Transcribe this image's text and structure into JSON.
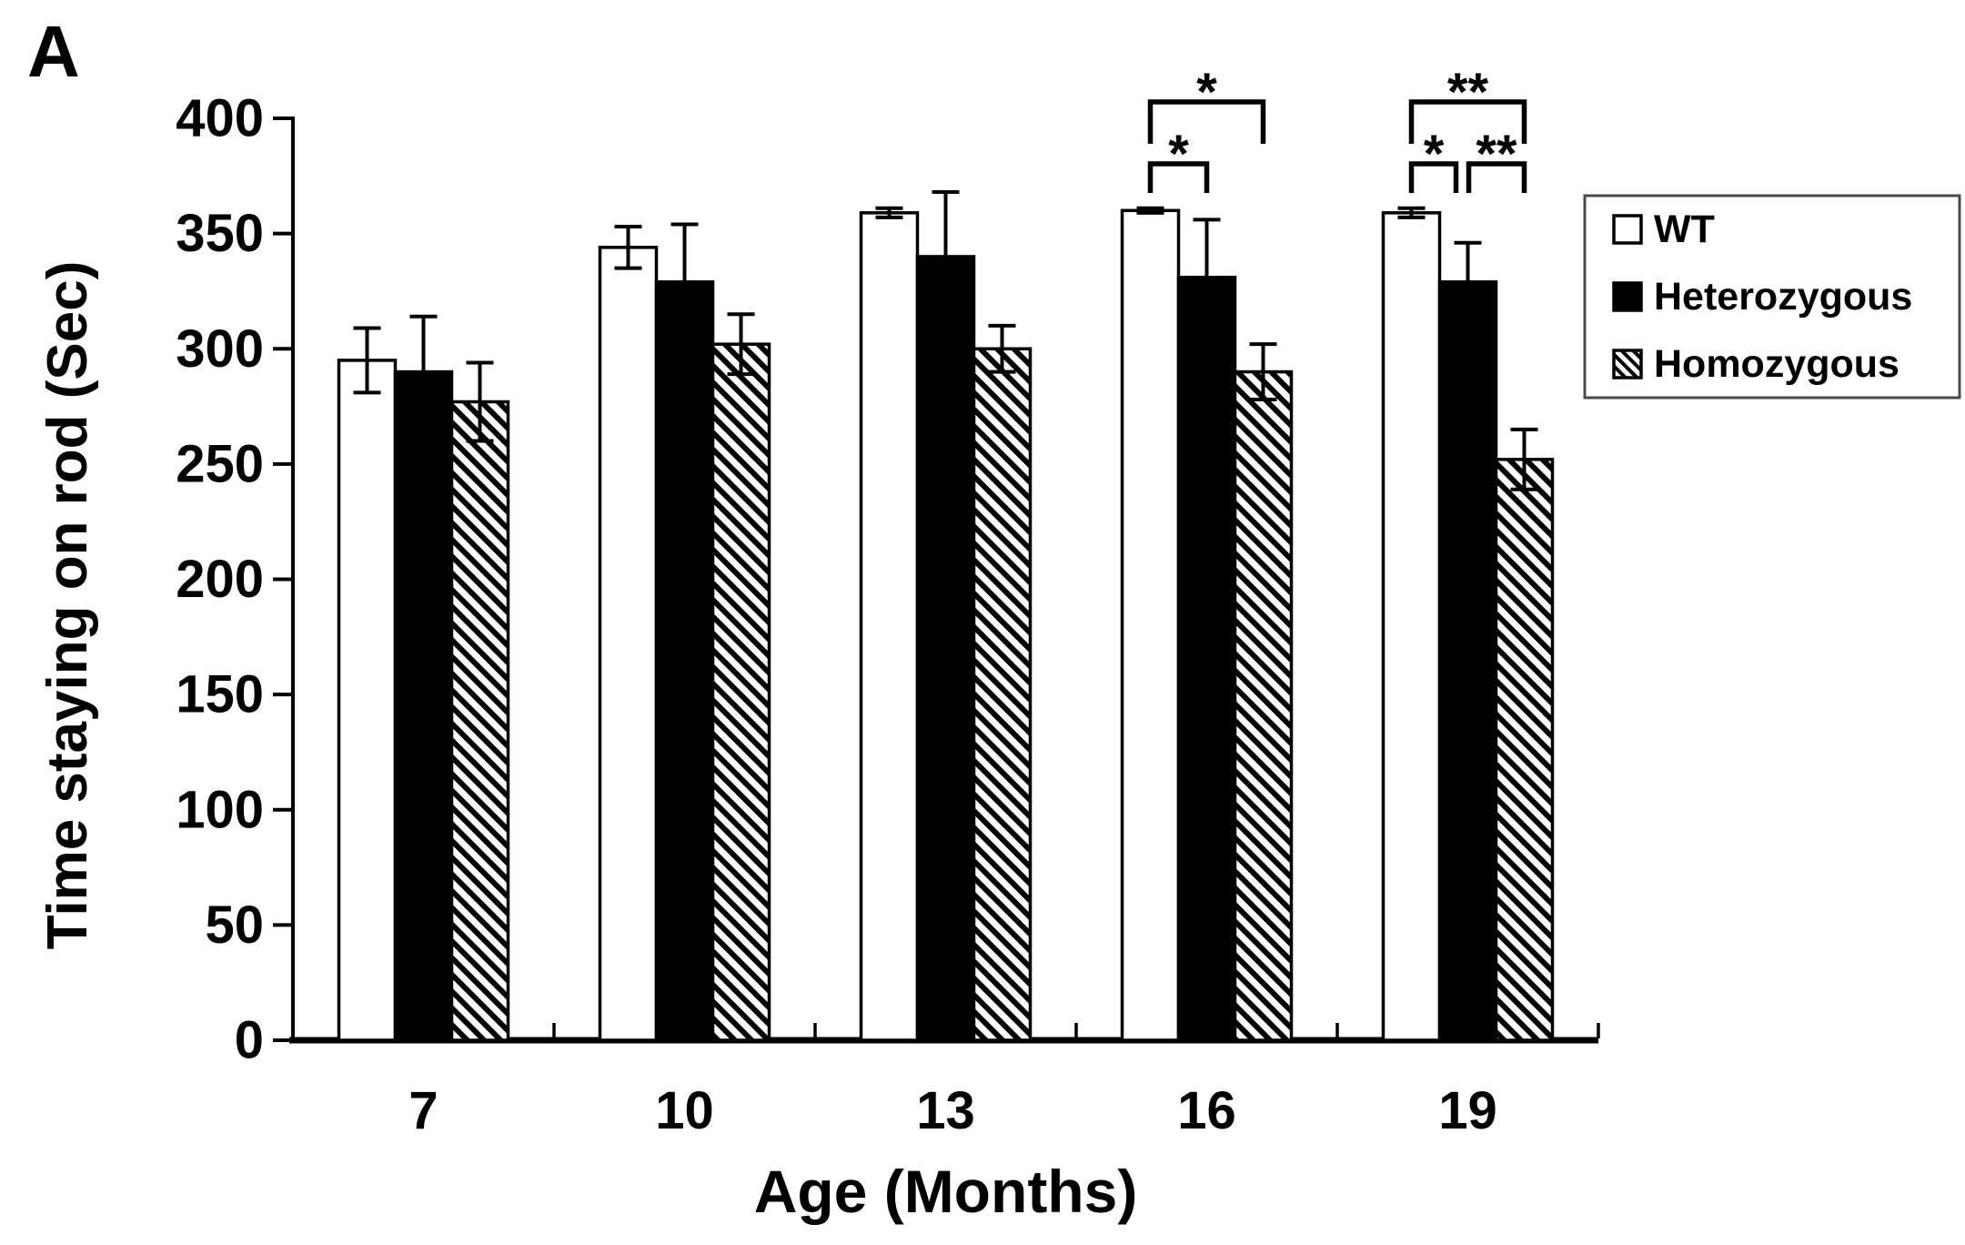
{
  "panel_label": "A",
  "colors": {
    "foreground": "#000000",
    "background": "#ffffff",
    "legend_border": "#4a4a4a"
  },
  "chart_data": {
    "type": "bar",
    "title": "",
    "xlabel": "Age (Months)",
    "ylabel": "Time staying on rod (Sec)",
    "categories": [
      "7",
      "10",
      "13",
      "16",
      "19"
    ],
    "ylim": [
      0,
      400
    ],
    "yticks": [
      0,
      50,
      100,
      150,
      200,
      250,
      300,
      350,
      400
    ],
    "grid": false,
    "legend_position": "outside-right-top",
    "error_bars": "symmetric, capped",
    "series": [
      {
        "name": "WT",
        "swatch": "open-square",
        "values": [
          295,
          344,
          359,
          360,
          359
        ],
        "errors": [
          14,
          9,
          2,
          1,
          2
        ]
      },
      {
        "name": "Heterozygous",
        "swatch": "solid-black-square",
        "values": [
          290,
          329,
          340,
          331,
          329
        ],
        "errors": [
          24,
          25,
          28,
          25,
          17
        ]
      },
      {
        "name": "Homozygous",
        "swatch": "diagonal-hatch-square",
        "values": [
          277,
          302,
          300,
          290,
          252
        ],
        "errors": [
          17,
          13,
          10,
          12,
          13
        ]
      }
    ],
    "significance": [
      {
        "category": "16",
        "from": "WT",
        "to": "Heterozygous",
        "label": "*",
        "tier": "low"
      },
      {
        "category": "16",
        "from": "WT",
        "to": "Homozygous",
        "label": "*",
        "tier": "high"
      },
      {
        "category": "19",
        "from": "WT",
        "to": "Heterozygous",
        "label": "*",
        "tier": "low"
      },
      {
        "category": "19",
        "from": "Heterozygous",
        "to": "Homozygous",
        "label": "**",
        "tier": "low"
      },
      {
        "category": "19",
        "from": "WT",
        "to": "Homozygous",
        "label": "**",
        "tier": "high"
      }
    ]
  }
}
